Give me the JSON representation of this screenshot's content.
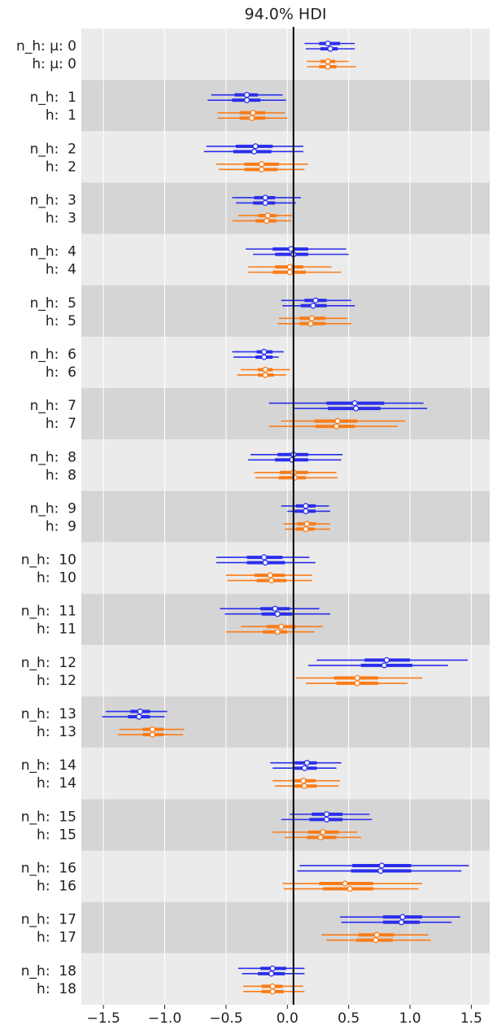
{
  "chart_data": {
    "type": "forest",
    "title": "94.0% HDI",
    "xlim": [
      -1.68,
      1.65
    ],
    "xticks": [
      {
        "value": -1.5,
        "label": "−1.5"
      },
      {
        "value": -1.0,
        "label": "−1.0"
      },
      {
        "value": -0.5,
        "label": "−0.5"
      },
      {
        "value": 0,
        "label": "0.0"
      },
      0.5,
      {
        "value": 1.0,
        "label": "1.0"
      },
      1.5
    ],
    "grid": true,
    "ref_line": 0.05,
    "band_colors": [
      "#ebebeb",
      "#d5d5d5"
    ],
    "rows": [
      {
        "label": "n_h: μ: 0",
        "color": "#2a2eec",
        "chains": [
          {
            "hdi": [
              0.14,
              0.55
            ],
            "iqr": [
              0.26,
              0.43
            ],
            "median": 0.33
          },
          {
            "hdi": [
              0.15,
              0.55
            ],
            "iqr": [
              0.27,
              0.41
            ],
            "median": 0.35
          }
        ]
      },
      {
        "label": "h: μ: 0",
        "color": "#fa7c17",
        "chains": [
          {
            "hdi": [
              0.16,
              0.5
            ],
            "iqr": [
              0.27,
              0.39
            ],
            "median": 0.33
          },
          {
            "hdi": [
              0.16,
              0.56
            ],
            "iqr": [
              0.26,
              0.4
            ],
            "median": 0.33
          }
        ]
      },
      {
        "label": "n_h:  1",
        "color": "#2a2eec",
        "chains": [
          {
            "hdi": [
              -0.62,
              -0.04
            ],
            "iqr": [
              -0.43,
              -0.24
            ],
            "median": -0.33
          },
          {
            "hdi": [
              -0.65,
              -0.01
            ],
            "iqr": [
              -0.45,
              -0.22
            ],
            "median": -0.33
          }
        ]
      },
      {
        "label": "h:  1",
        "color": "#fa7c17",
        "chains": [
          {
            "hdi": [
              -0.57,
              -0.02
            ],
            "iqr": [
              -0.39,
              -0.18
            ],
            "median": -0.28
          },
          {
            "hdi": [
              -0.57,
              0.0
            ],
            "iqr": [
              -0.39,
              -0.18
            ],
            "median": -0.29
          }
        ]
      },
      {
        "label": "n_h:  2",
        "color": "#2a2eec",
        "chains": [
          {
            "hdi": [
              -0.66,
              0.13
            ],
            "iqr": [
              -0.42,
              -0.12
            ],
            "median": -0.26
          },
          {
            "hdi": [
              -0.68,
              0.13
            ],
            "iqr": [
              -0.44,
              -0.13
            ],
            "median": -0.27
          }
        ]
      },
      {
        "label": "h:  2",
        "color": "#fa7c17",
        "chains": [
          {
            "hdi": [
              -0.58,
              0.17
            ],
            "iqr": [
              -0.35,
              -0.07
            ],
            "median": -0.21
          },
          {
            "hdi": [
              -0.56,
              0.14
            ],
            "iqr": [
              -0.35,
              -0.08
            ],
            "median": -0.21
          }
        ]
      },
      {
        "label": "n_h:  3",
        "color": "#2a2eec",
        "chains": [
          {
            "hdi": [
              -0.45,
              0.11
            ],
            "iqr": [
              -0.27,
              -0.1
            ],
            "median": -0.18
          },
          {
            "hdi": [
              -0.42,
              0.07
            ],
            "iqr": [
              -0.28,
              -0.1
            ],
            "median": -0.18
          }
        ]
      },
      {
        "label": "h:  3",
        "color": "#fa7c17",
        "chains": [
          {
            "hdi": [
              -0.4,
              0.04
            ],
            "iqr": [
              -0.24,
              -0.09
            ],
            "median": -0.16
          },
          {
            "hdi": [
              -0.45,
              0.03
            ],
            "iqr": [
              -0.26,
              -0.09
            ],
            "median": -0.17
          }
        ]
      },
      {
        "label": "n_h:  4",
        "color": "#2a2eec",
        "chains": [
          {
            "hdi": [
              -0.34,
              0.48
            ],
            "iqr": [
              -0.12,
              0.17
            ],
            "median": 0.03
          },
          {
            "hdi": [
              -0.28,
              0.5
            ],
            "iqr": [
              -0.1,
              0.17
            ],
            "median": 0.05
          }
        ]
      },
      {
        "label": "h:  4",
        "color": "#fa7c17",
        "chains": [
          {
            "hdi": [
              -0.32,
              0.36
            ],
            "iqr": [
              -0.1,
              0.13
            ],
            "median": 0.02
          },
          {
            "hdi": [
              -0.32,
              0.44
            ],
            "iqr": [
              -0.12,
              0.15
            ],
            "median": 0.02
          }
        ]
      },
      {
        "label": "n_h:  5",
        "color": "#2a2eec",
        "chains": [
          {
            "hdi": [
              -0.05,
              0.52
            ],
            "iqr": [
              0.14,
              0.32
            ],
            "median": 0.23
          },
          {
            "hdi": [
              -0.04,
              0.55
            ],
            "iqr": [
              0.11,
              0.32
            ],
            "median": 0.21
          }
        ]
      },
      {
        "label": "h:  5",
        "color": "#fa7c17",
        "chains": [
          {
            "hdi": [
              -0.07,
              0.49
            ],
            "iqr": [
              0.1,
              0.31
            ],
            "median": 0.2
          },
          {
            "hdi": [
              -0.08,
              0.52
            ],
            "iqr": [
              0.1,
              0.31
            ],
            "median": 0.19
          }
        ]
      },
      {
        "label": "n_h:  6",
        "color": "#2a2eec",
        "chains": [
          {
            "hdi": [
              -0.45,
              -0.03
            ],
            "iqr": [
              -0.25,
              -0.12
            ],
            "median": -0.19
          },
          {
            "hdi": [
              -0.44,
              -0.07
            ],
            "iqr": [
              -0.26,
              -0.12
            ],
            "median": -0.19
          }
        ]
      },
      {
        "label": "h:  6",
        "color": "#fa7c17",
        "chains": [
          {
            "hdi": [
              -0.38,
              0.02
            ],
            "iqr": [
              -0.24,
              -0.12
            ],
            "median": -0.18
          },
          {
            "hdi": [
              -0.41,
              -0.01
            ],
            "iqr": [
              -0.24,
              -0.11
            ],
            "median": -0.18
          }
        ]
      },
      {
        "label": "n_h:  7",
        "color": "#2a2eec",
        "chains": [
          {
            "hdi": [
              -0.15,
              1.11
            ],
            "iqr": [
              0.32,
              0.79
            ],
            "median": 0.55
          },
          {
            "hdi": [
              0.05,
              1.14
            ],
            "iqr": [
              0.33,
              0.76
            ],
            "median": 0.56
          }
        ]
      },
      {
        "label": "h:  7",
        "color": "#fa7c17",
        "chains": [
          {
            "hdi": [
              -0.05,
              0.96
            ],
            "iqr": [
              0.22,
              0.57
            ],
            "median": 0.41
          },
          {
            "hdi": [
              -0.15,
              0.9
            ],
            "iqr": [
              0.23,
              0.55
            ],
            "median": 0.4
          }
        ]
      },
      {
        "label": "n_h:  8",
        "color": "#2a2eec",
        "chains": [
          {
            "hdi": [
              -0.3,
              0.45
            ],
            "iqr": [
              -0.08,
              0.17
            ],
            "median": 0.05
          },
          {
            "hdi": [
              -0.32,
              0.44
            ],
            "iqr": [
              -0.1,
              0.17
            ],
            "median": 0.04
          }
        ]
      },
      {
        "label": "h:  8",
        "color": "#fa7c17",
        "chains": [
          {
            "hdi": [
              -0.27,
              0.4
            ],
            "iqr": [
              -0.06,
              0.17
            ],
            "median": 0.05
          },
          {
            "hdi": [
              -0.26,
              0.41
            ],
            "iqr": [
              -0.07,
              0.15
            ],
            "median": 0.06
          }
        ]
      },
      {
        "label": "n_h:  9",
        "color": "#2a2eec",
        "chains": [
          {
            "hdi": [
              -0.05,
              0.34
            ],
            "iqr": [
              0.07,
              0.23
            ],
            "median": 0.15
          },
          {
            "hdi": [
              0.0,
              0.35
            ],
            "iqr": [
              0.06,
              0.23
            ],
            "median": 0.15
          }
        ]
      },
      {
        "label": "h:  9",
        "color": "#fa7c17",
        "chains": [
          {
            "hdi": [
              -0.03,
              0.35
            ],
            "iqr": [
              0.08,
              0.23
            ],
            "median": 0.16
          },
          {
            "hdi": [
              -0.02,
              0.35
            ],
            "iqr": [
              0.07,
              0.22
            ],
            "median": 0.15
          }
        ]
      },
      {
        "label": "n_h:  10",
        "color": "#2a2eec",
        "chains": [
          {
            "hdi": [
              -0.58,
              0.18
            ],
            "iqr": [
              -0.33,
              -0.04
            ],
            "median": -0.19
          },
          {
            "hdi": [
              -0.58,
              0.23
            ],
            "iqr": [
              -0.33,
              -0.02
            ],
            "median": -0.18
          }
        ]
      },
      {
        "label": "h:  10",
        "color": "#fa7c17",
        "chains": [
          {
            "hdi": [
              -0.5,
              0.2
            ],
            "iqr": [
              -0.27,
              -0.02
            ],
            "median": -0.14
          },
          {
            "hdi": [
              -0.49,
              0.2
            ],
            "iqr": [
              -0.25,
              -0.01
            ],
            "median": -0.13
          }
        ]
      },
      {
        "label": "n_h:  11",
        "color": "#2a2eec",
        "chains": [
          {
            "hdi": [
              -0.55,
              0.26
            ],
            "iqr": [
              -0.22,
              0.02
            ],
            "median": -0.1
          },
          {
            "hdi": [
              -0.51,
              0.35
            ],
            "iqr": [
              -0.21,
              0.04
            ],
            "median": -0.08
          }
        ]
      },
      {
        "label": "h:  11",
        "color": "#fa7c17",
        "chains": [
          {
            "hdi": [
              -0.38,
              0.29
            ],
            "iqr": [
              -0.17,
              0.07
            ],
            "median": -0.05
          },
          {
            "hdi": [
              -0.5,
              0.22
            ],
            "iqr": [
              -0.2,
              0.0
            ],
            "median": -0.08
          }
        ]
      },
      {
        "label": "n_h:  12",
        "color": "#2a2eec",
        "chains": [
          {
            "hdi": [
              0.24,
              1.47
            ],
            "iqr": [
              0.63,
              1.0
            ],
            "median": 0.81
          },
          {
            "hdi": [
              0.17,
              1.31
            ],
            "iqr": [
              0.6,
              1.02
            ],
            "median": 0.79
          }
        ]
      },
      {
        "label": "h:  12",
        "color": "#fa7c17",
        "chains": [
          {
            "hdi": [
              0.07,
              1.1
            ],
            "iqr": [
              0.38,
              0.74
            ],
            "median": 0.57
          },
          {
            "hdi": [
              0.15,
              0.98
            ],
            "iqr": [
              0.4,
              0.74
            ],
            "median": 0.57
          }
        ]
      },
      {
        "label": "n_h:  13",
        "color": "#2a2eec",
        "chains": [
          {
            "hdi": [
              -1.48,
              -0.98
            ],
            "iqr": [
              -1.28,
              -1.12
            ],
            "median": -1.2
          },
          {
            "hdi": [
              -1.51,
              -1.0
            ],
            "iqr": [
              -1.3,
              -1.12
            ],
            "median": -1.21
          }
        ]
      },
      {
        "label": "h:  13",
        "color": "#fa7c17",
        "chains": [
          {
            "hdi": [
              -1.37,
              -0.84
            ],
            "iqr": [
              -1.18,
              -1.01
            ],
            "median": -1.1
          },
          {
            "hdi": [
              -1.38,
              -0.85
            ],
            "iqr": [
              -1.18,
              -1.01
            ],
            "median": -1.1
          }
        ]
      },
      {
        "label": "n_h:  14",
        "color": "#2a2eec",
        "chains": [
          {
            "hdi": [
              -0.14,
              0.44
            ],
            "iqr": [
              0.06,
              0.24
            ],
            "median": 0.16
          },
          {
            "hdi": [
              -0.12,
              0.4
            ],
            "iqr": [
              0.05,
              0.24
            ],
            "median": 0.14
          }
        ]
      },
      {
        "label": "h:  14",
        "color": "#fa7c17",
        "chains": [
          {
            "hdi": [
              -0.12,
              0.43
            ],
            "iqr": [
              0.06,
              0.23
            ],
            "median": 0.13
          },
          {
            "hdi": [
              -0.1,
              0.42
            ],
            "iqr": [
              0.06,
              0.24
            ],
            "median": 0.14
          }
        ]
      },
      {
        "label": "n_h:  15",
        "color": "#2a2eec",
        "chains": [
          {
            "hdi": [
              0.02,
              0.67
            ],
            "iqr": [
              0.2,
              0.45
            ],
            "median": 0.32
          },
          {
            "hdi": [
              -0.05,
              0.69
            ],
            "iqr": [
              0.18,
              0.45
            ],
            "median": 0.32
          }
        ]
      },
      {
        "label": "h:  15",
        "color": "#fa7c17",
        "chains": [
          {
            "hdi": [
              -0.12,
              0.57
            ],
            "iqr": [
              0.17,
              0.42
            ],
            "median": 0.29
          },
          {
            "hdi": [
              -0.02,
              0.6
            ],
            "iqr": [
              0.16,
              0.4
            ],
            "median": 0.27
          }
        ]
      },
      {
        "label": "n_h:  16",
        "color": "#2a2eec",
        "chains": [
          {
            "hdi": [
              0.1,
              1.48
            ],
            "iqr": [
              0.53,
              1.01
            ],
            "median": 0.77
          },
          {
            "hdi": [
              0.08,
              1.42
            ],
            "iqr": [
              0.52,
              1.01
            ],
            "median": 0.76
          }
        ]
      },
      {
        "label": "h:  16",
        "color": "#fa7c17",
        "chains": [
          {
            "hdi": [
              -0.04,
              1.1
            ],
            "iqr": [
              0.26,
              0.7
            ],
            "median": 0.47
          },
          {
            "hdi": [
              -0.03,
              1.07
            ],
            "iqr": [
              0.29,
              0.7
            ],
            "median": 0.51
          }
        ]
      },
      {
        "label": "n_h:  17",
        "color": "#2a2eec",
        "chains": [
          {
            "hdi": [
              0.43,
              1.41
            ],
            "iqr": [
              0.78,
              1.1
            ],
            "median": 0.94
          },
          {
            "hdi": [
              0.44,
              1.34
            ],
            "iqr": [
              0.78,
              1.08
            ],
            "median": 0.93
          }
        ]
      },
      {
        "label": "h:  17",
        "color": "#fa7c17",
        "chains": [
          {
            "hdi": [
              0.28,
              1.15
            ],
            "iqr": [
              0.58,
              0.87
            ],
            "median": 0.73
          },
          {
            "hdi": [
              0.32,
              1.17
            ],
            "iqr": [
              0.56,
              0.86
            ],
            "median": 0.72
          }
        ]
      },
      {
        "label": "n_h:  18",
        "color": "#2a2eec",
        "chains": [
          {
            "hdi": [
              -0.4,
              0.14
            ],
            "iqr": [
              -0.22,
              -0.01
            ],
            "median": -0.12
          },
          {
            "hdi": [
              -0.37,
              0.14
            ],
            "iqr": [
              -0.24,
              -0.02
            ],
            "median": -0.13
          }
        ]
      },
      {
        "label": "h:  18",
        "color": "#fa7c17",
        "chains": [
          {
            "hdi": [
              -0.36,
              0.13
            ],
            "iqr": [
              -0.21,
              -0.04
            ],
            "median": -0.12
          },
          {
            "hdi": [
              -0.36,
              0.14
            ],
            "iqr": [
              -0.21,
              -0.03
            ],
            "median": -0.12
          }
        ]
      }
    ]
  }
}
